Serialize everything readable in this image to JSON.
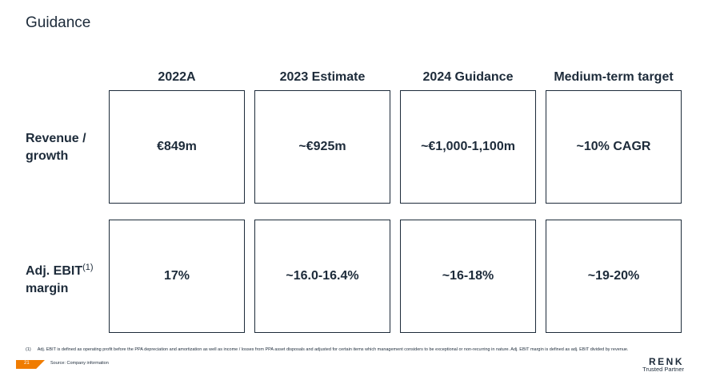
{
  "title": "Guidance",
  "columns": [
    "2022A",
    "2023 Estimate",
    "2024 Guidance",
    "Medium-term target"
  ],
  "rows": [
    {
      "label_line1": "Revenue /",
      "label_line2": "growth",
      "values": [
        "€849m",
        "~€925m",
        "~€1,000-1,100m",
        "~10% CAGR"
      ]
    },
    {
      "label_line1": "Adj. EBIT",
      "label_sup": "(1)",
      "label_line2": "margin",
      "values": [
        "17%",
        "~16.0-16.4%",
        "~16-18%",
        "~19-20%"
      ]
    }
  ],
  "footnote": {
    "number": "(1)",
    "text": "Adj. EBIT is defined as operating profit before the PPA depreciation and amortization as well as income / losses from PPA asset disposals and adjusted for certain items which management considers to be exceptional or non-recurring in nature. Adj. EBIT margin is defined as adj. EBIT divided by revenue."
  },
  "footer": {
    "page_number": "21",
    "source": "Source: Company information",
    "logo_word": "RENK",
    "logo_tagline": "Trusted Partner",
    "accent_color": "#f07c00"
  }
}
